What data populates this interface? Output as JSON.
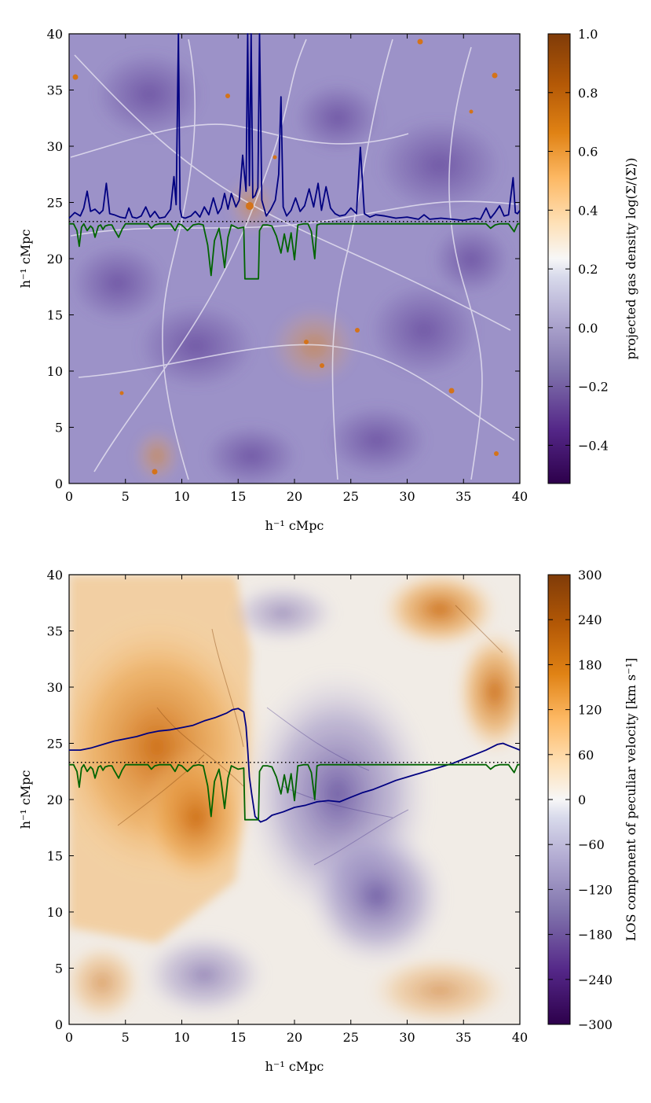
{
  "panels": [
    {
      "xlabel": "h⁻¹ cMpc",
      "ylabel": "h⁻¹ cMpc",
      "xticks": [
        "0",
        "5",
        "10",
        "15",
        "20",
        "25",
        "30",
        "35",
        "40"
      ],
      "yticks": [
        "0",
        "5",
        "10",
        "15",
        "20",
        "25",
        "30",
        "35",
        "40"
      ],
      "colorbar": {
        "label": "projected gas density log(Σ/⟨Σ⟩)",
        "ticks": [
          "−0.4",
          "−0.2",
          "0.0",
          "0.2",
          "0.4",
          "0.6",
          "0.8",
          "1.0"
        ]
      }
    },
    {
      "xlabel": "h⁻¹ cMpc",
      "ylabel": "h⁻¹ cMpc",
      "xticks": [
        "0",
        "5",
        "10",
        "15",
        "20",
        "25",
        "30",
        "35",
        "40"
      ],
      "yticks": [
        "0",
        "5",
        "10",
        "15",
        "20",
        "25",
        "30",
        "35",
        "40"
      ],
      "colorbar": {
        "label": "LOS component of peculiar velocity [km s⁻¹]",
        "ticks": [
          "−300",
          "−240",
          "−180",
          "−120",
          "−60",
          "0",
          "60",
          "120",
          "180",
          "240",
          "300"
        ]
      }
    }
  ],
  "colors": {
    "cmap_low": "#2d004b",
    "cmap_mid": "#f7f7f7",
    "cmap_high": "#7f3b08",
    "density_line": "#000080",
    "velocity_line": "#000080",
    "flux_line": "#006400",
    "dotted_line": "#000000"
  },
  "chart_data": [
    {
      "type": "heatmap",
      "title": "",
      "xlabel": "h⁻¹ cMpc",
      "ylabel": "h⁻¹ cMpc",
      "xlim": [
        0,
        40
      ],
      "ylim": [
        0,
        40
      ],
      "colorbar_label": "projected gas density log(Σ/⟨Σ⟩)",
      "colorbar_range": [
        -0.53,
        1.0
      ],
      "colorbar_ticks": [
        -0.4,
        -0.2,
        0.0,
        0.2,
        0.4,
        0.6,
        0.8,
        1.0
      ],
      "sightline_y": 23.3,
      "series": [
        {
          "name": "gas density (overlay)",
          "x": [
            0,
            0.5,
            1.0,
            1.3,
            1.6,
            1.9,
            2.3,
            2.7,
            3.0,
            3.3,
            3.6,
            4.0,
            4.5,
            5.0,
            5.3,
            5.6,
            6.0,
            6.4,
            6.8,
            7.2,
            7.6,
            8.0,
            8.5,
            9.0,
            9.3,
            9.5,
            9.7,
            9.85,
            10.0,
            10.3,
            10.8,
            11.2,
            11.6,
            12.0,
            12.4,
            12.8,
            13.2,
            13.5,
            13.8,
            14.1,
            14.4,
            14.8,
            15.1,
            15.4,
            15.7,
            15.85,
            16.0,
            16.15,
            16.3,
            16.5,
            16.75,
            16.9,
            17.1,
            17.5,
            17.9,
            18.3,
            18.6,
            18.8,
            19.0,
            19.3,
            19.7,
            20.1,
            20.5,
            20.9,
            21.3,
            21.7,
            22.1,
            22.4,
            22.8,
            23.2,
            23.6,
            24.0,
            24.5,
            25.0,
            25.5,
            25.85,
            26.2,
            26.7,
            27.2,
            28.0,
            29.0,
            30.0,
            31.0,
            31.5,
            32.0,
            33.0,
            34.0,
            35.0,
            36.0,
            36.5,
            37.0,
            37.4,
            37.8,
            38.2,
            38.6,
            39.0,
            39.4,
            39.6,
            39.8,
            40.0
          ],
          "y": [
            23.6,
            24.1,
            23.8,
            24.5,
            26.0,
            24.2,
            24.4,
            24.0,
            24.3,
            26.7,
            24.0,
            23.9,
            23.7,
            23.6,
            24.5,
            23.7,
            23.6,
            23.8,
            24.6,
            23.7,
            24.2,
            23.6,
            23.7,
            24.4,
            27.3,
            24.8,
            40,
            24.4,
            23.7,
            23.6,
            23.8,
            24.2,
            23.7,
            24.6,
            23.9,
            25.4,
            24.0,
            24.5,
            25.8,
            24.4,
            25.8,
            24.6,
            25.2,
            29.2,
            26.0,
            40,
            26.5,
            40,
            25.4,
            25.6,
            26.3,
            40,
            25.2,
            23.8,
            24.4,
            25.2,
            27.5,
            34.4,
            24.6,
            23.8,
            24.3,
            25.4,
            24.2,
            24.7,
            26.2,
            24.6,
            26.7,
            24.3,
            26.4,
            24.5,
            24.0,
            23.8,
            23.9,
            24.5,
            24.0,
            29.9,
            24.0,
            23.7,
            23.9,
            23.8,
            23.6,
            23.7,
            23.5,
            23.9,
            23.5,
            23.6,
            23.5,
            23.4,
            23.6,
            23.5,
            24.5,
            23.6,
            24.1,
            24.7,
            23.8,
            23.9,
            27.2,
            24.1,
            24.0,
            24.3
          ]
        },
        {
          "name": "transmitted flux (overlay)",
          "x": [
            0,
            0.4,
            0.7,
            0.9,
            1.1,
            1.3,
            1.6,
            1.9,
            2.1,
            2.3,
            2.6,
            2.8,
            3.0,
            3.2,
            3.5,
            3.8,
            4.0,
            4.4,
            4.7,
            5.0,
            5.3,
            6.0,
            7.0,
            7.3,
            7.6,
            8.0,
            9.0,
            9.4,
            9.7,
            10.0,
            10.5,
            11.0,
            11.5,
            11.9,
            12.3,
            12.6,
            12.9,
            13.3,
            13.5,
            13.8,
            14.1,
            14.4,
            14.8,
            15.0,
            15.5,
            15.6,
            15.7,
            16.8,
            16.9,
            17.2,
            17.6,
            18.0,
            18.4,
            18.8,
            19.1,
            19.4,
            19.7,
            20.0,
            20.3,
            20.8,
            21.2,
            21.5,
            21.8,
            22.0,
            22.3,
            22.6,
            22.9,
            23.2,
            23.5,
            24.0,
            25.0,
            28.0,
            32.0,
            36.0,
            37.0,
            37.4,
            37.8,
            38.2,
            38.6,
            39.0,
            39.5,
            39.8,
            40.0
          ],
          "y": [
            23.1,
            23.1,
            22.5,
            21.1,
            22.8,
            23.1,
            22.5,
            22.9,
            22.7,
            21.9,
            22.9,
            23.0,
            22.6,
            22.9,
            23.0,
            23.0,
            22.6,
            21.9,
            22.6,
            23.1,
            23.1,
            23.1,
            23.1,
            22.7,
            23.0,
            23.1,
            23.1,
            22.5,
            23.1,
            23.0,
            22.5,
            23.0,
            23.1,
            23.0,
            21.2,
            18.5,
            21.6,
            22.7,
            21.6,
            19.2,
            21.9,
            23.0,
            22.8,
            22.7,
            22.8,
            18.2,
            18.2,
            18.2,
            22.5,
            23.0,
            23.0,
            22.9,
            22.0,
            20.5,
            22.2,
            20.6,
            22.3,
            19.9,
            23.0,
            23.1,
            23.1,
            22.4,
            20.0,
            23.0,
            23.1,
            23.1,
            23.1,
            23.1,
            23.1,
            23.1,
            23.1,
            23.1,
            23.1,
            23.1,
            23.1,
            22.7,
            23.0,
            23.1,
            23.1,
            23.1,
            22.4,
            23.1,
            23.1
          ]
        }
      ]
    },
    {
      "type": "heatmap",
      "title": "",
      "xlabel": "h⁻¹ cMpc",
      "ylabel": "h⁻¹ cMpc",
      "xlim": [
        0,
        40
      ],
      "ylim": [
        0,
        40
      ],
      "colorbar_label": "LOS component of peculiar velocity [km s⁻¹]",
      "colorbar_range": [
        -300,
        300
      ],
      "colorbar_ticks": [
        -300,
        -240,
        -180,
        -120,
        -60,
        0,
        60,
        120,
        180,
        240,
        300
      ],
      "sightline_y": 23.3,
      "series": [
        {
          "name": "LOS velocity (overlay)",
          "x": [
            0,
            1,
            2,
            3,
            4,
            5,
            6,
            7,
            8,
            9,
            10,
            11,
            12,
            13,
            14,
            14.5,
            15,
            15.5,
            15.7,
            15.85,
            16.0,
            16.2,
            16.5,
            17,
            17.5,
            18,
            19,
            20,
            21,
            22,
            23,
            24,
            25,
            26,
            27,
            28,
            29,
            30,
            31,
            32,
            33,
            34,
            35,
            36,
            37,
            38,
            38.5,
            39,
            39.5,
            40
          ],
          "y": [
            24.4,
            24.4,
            24.6,
            24.9,
            25.2,
            25.4,
            25.6,
            25.9,
            26.1,
            26.2,
            26.4,
            26.6,
            27.0,
            27.3,
            27.7,
            28.0,
            28.1,
            27.8,
            26.5,
            24.5,
            22.0,
            20.5,
            18.5,
            18.0,
            18.2,
            18.6,
            18.9,
            19.3,
            19.5,
            19.8,
            19.9,
            19.8,
            20.2,
            20.6,
            20.9,
            21.3,
            21.7,
            22.0,
            22.3,
            22.6,
            22.9,
            23.2,
            23.6,
            24.0,
            24.4,
            24.9,
            25.0,
            24.8,
            24.6,
            24.4
          ]
        },
        {
          "name": "transmitted flux (overlay)",
          "x": [
            0,
            0.4,
            0.7,
            0.9,
            1.1,
            1.3,
            1.6,
            1.9,
            2.1,
            2.3,
            2.6,
            2.8,
            3.0,
            3.2,
            3.5,
            3.8,
            4.0,
            4.4,
            4.7,
            5.0,
            5.3,
            6.0,
            7.0,
            7.3,
            7.6,
            8.0,
            9.0,
            9.4,
            9.7,
            10.0,
            10.5,
            11.0,
            11.5,
            11.9,
            12.3,
            12.6,
            12.9,
            13.3,
            13.5,
            13.8,
            14.1,
            14.4,
            14.8,
            15.0,
            15.5,
            15.6,
            15.7,
            16.8,
            16.9,
            17.2,
            17.6,
            18.0,
            18.4,
            18.8,
            19.1,
            19.4,
            19.7,
            20.0,
            20.3,
            20.8,
            21.2,
            21.5,
            21.8,
            22.0,
            22.3,
            22.6,
            22.9,
            23.2,
            23.5,
            24.0,
            25.0,
            28.0,
            32.0,
            36.0,
            37.0,
            37.4,
            37.8,
            38.2,
            38.6,
            39.0,
            39.5,
            39.8,
            40.0
          ],
          "y": [
            23.1,
            23.1,
            22.5,
            21.1,
            22.8,
            23.1,
            22.5,
            22.9,
            22.7,
            21.9,
            22.9,
            23.0,
            22.6,
            22.9,
            23.0,
            23.0,
            22.6,
            21.9,
            22.6,
            23.1,
            23.1,
            23.1,
            23.1,
            22.7,
            23.0,
            23.1,
            23.1,
            22.5,
            23.1,
            23.0,
            22.5,
            23.0,
            23.1,
            23.0,
            21.2,
            18.5,
            21.6,
            22.7,
            21.6,
            19.2,
            21.9,
            23.0,
            22.8,
            22.7,
            22.8,
            18.2,
            18.2,
            18.2,
            22.5,
            23.0,
            23.0,
            22.9,
            22.0,
            20.5,
            22.2,
            20.6,
            22.3,
            19.9,
            23.0,
            23.1,
            23.1,
            22.4,
            20.0,
            23.0,
            23.1,
            23.1,
            23.1,
            23.1,
            23.1,
            23.1,
            23.1,
            23.1,
            23.1,
            23.1,
            23.1,
            22.7,
            23.0,
            23.1,
            23.1,
            23.1,
            22.4,
            23.1,
            23.1
          ]
        }
      ]
    }
  ]
}
